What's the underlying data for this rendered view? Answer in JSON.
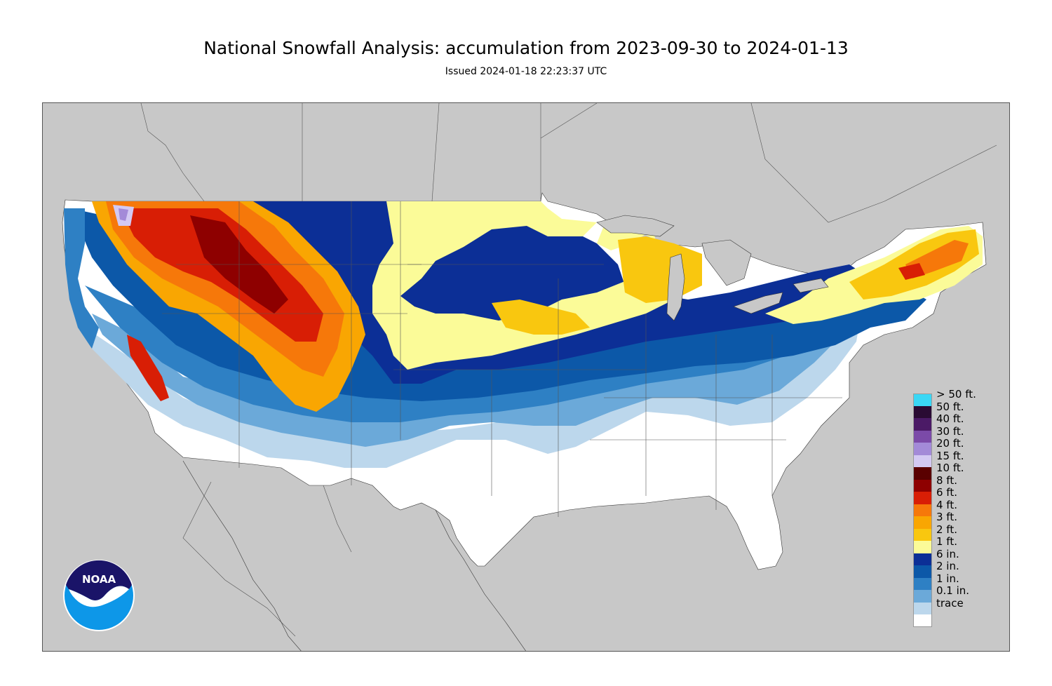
{
  "header": {
    "title": "National Snowfall Analysis: accumulation from 2023-09-30 to 2024-01-13",
    "issued": "Issued 2024-01-18 22:23:37 UTC"
  },
  "logo": {
    "text": "NOAA",
    "icon": "noaa-logo-icon"
  },
  "colors": {
    "ocean": "#c8c8c8",
    "land_outside": "#c8c8c8",
    "border_lines": "#555555"
  },
  "legend": [
    {
      "label": "> 50 ft.",
      "color": "#3ad7f5"
    },
    {
      "label": "50 ft.",
      "color": "#2a0b33"
    },
    {
      "label": "40 ft.",
      "color": "#4b1a66"
    },
    {
      "label": "30 ft.",
      "color": "#7b4aa8"
    },
    {
      "label": "20 ft.",
      "color": "#a38ad8"
    },
    {
      "label": "15 ft.",
      "color": "#d3c9f3"
    },
    {
      "label": "10 ft.",
      "color": "#5a0000"
    },
    {
      "label": "8 ft.",
      "color": "#8e0000"
    },
    {
      "label": "6 ft.",
      "color": "#d81e05"
    },
    {
      "label": "4 ft.",
      "color": "#f6780a"
    },
    {
      "label": "3 ft.",
      "color": "#f9a602"
    },
    {
      "label": "2 ft.",
      "color": "#f9c70f"
    },
    {
      "label": "1 ft.",
      "color": "#fbfb98"
    },
    {
      "label": "6 in.",
      "color": "#0c2f96"
    },
    {
      "label": "2 in.",
      "color": "#0c58a8"
    },
    {
      "label": "1 in.",
      "color": "#2e80c4"
    },
    {
      "label": "0.1 in.",
      "color": "#6ba9d9"
    },
    {
      "label": "trace",
      "color": "#bcd7ec"
    },
    {
      "label": "",
      "color": "#ffffff"
    }
  ]
}
